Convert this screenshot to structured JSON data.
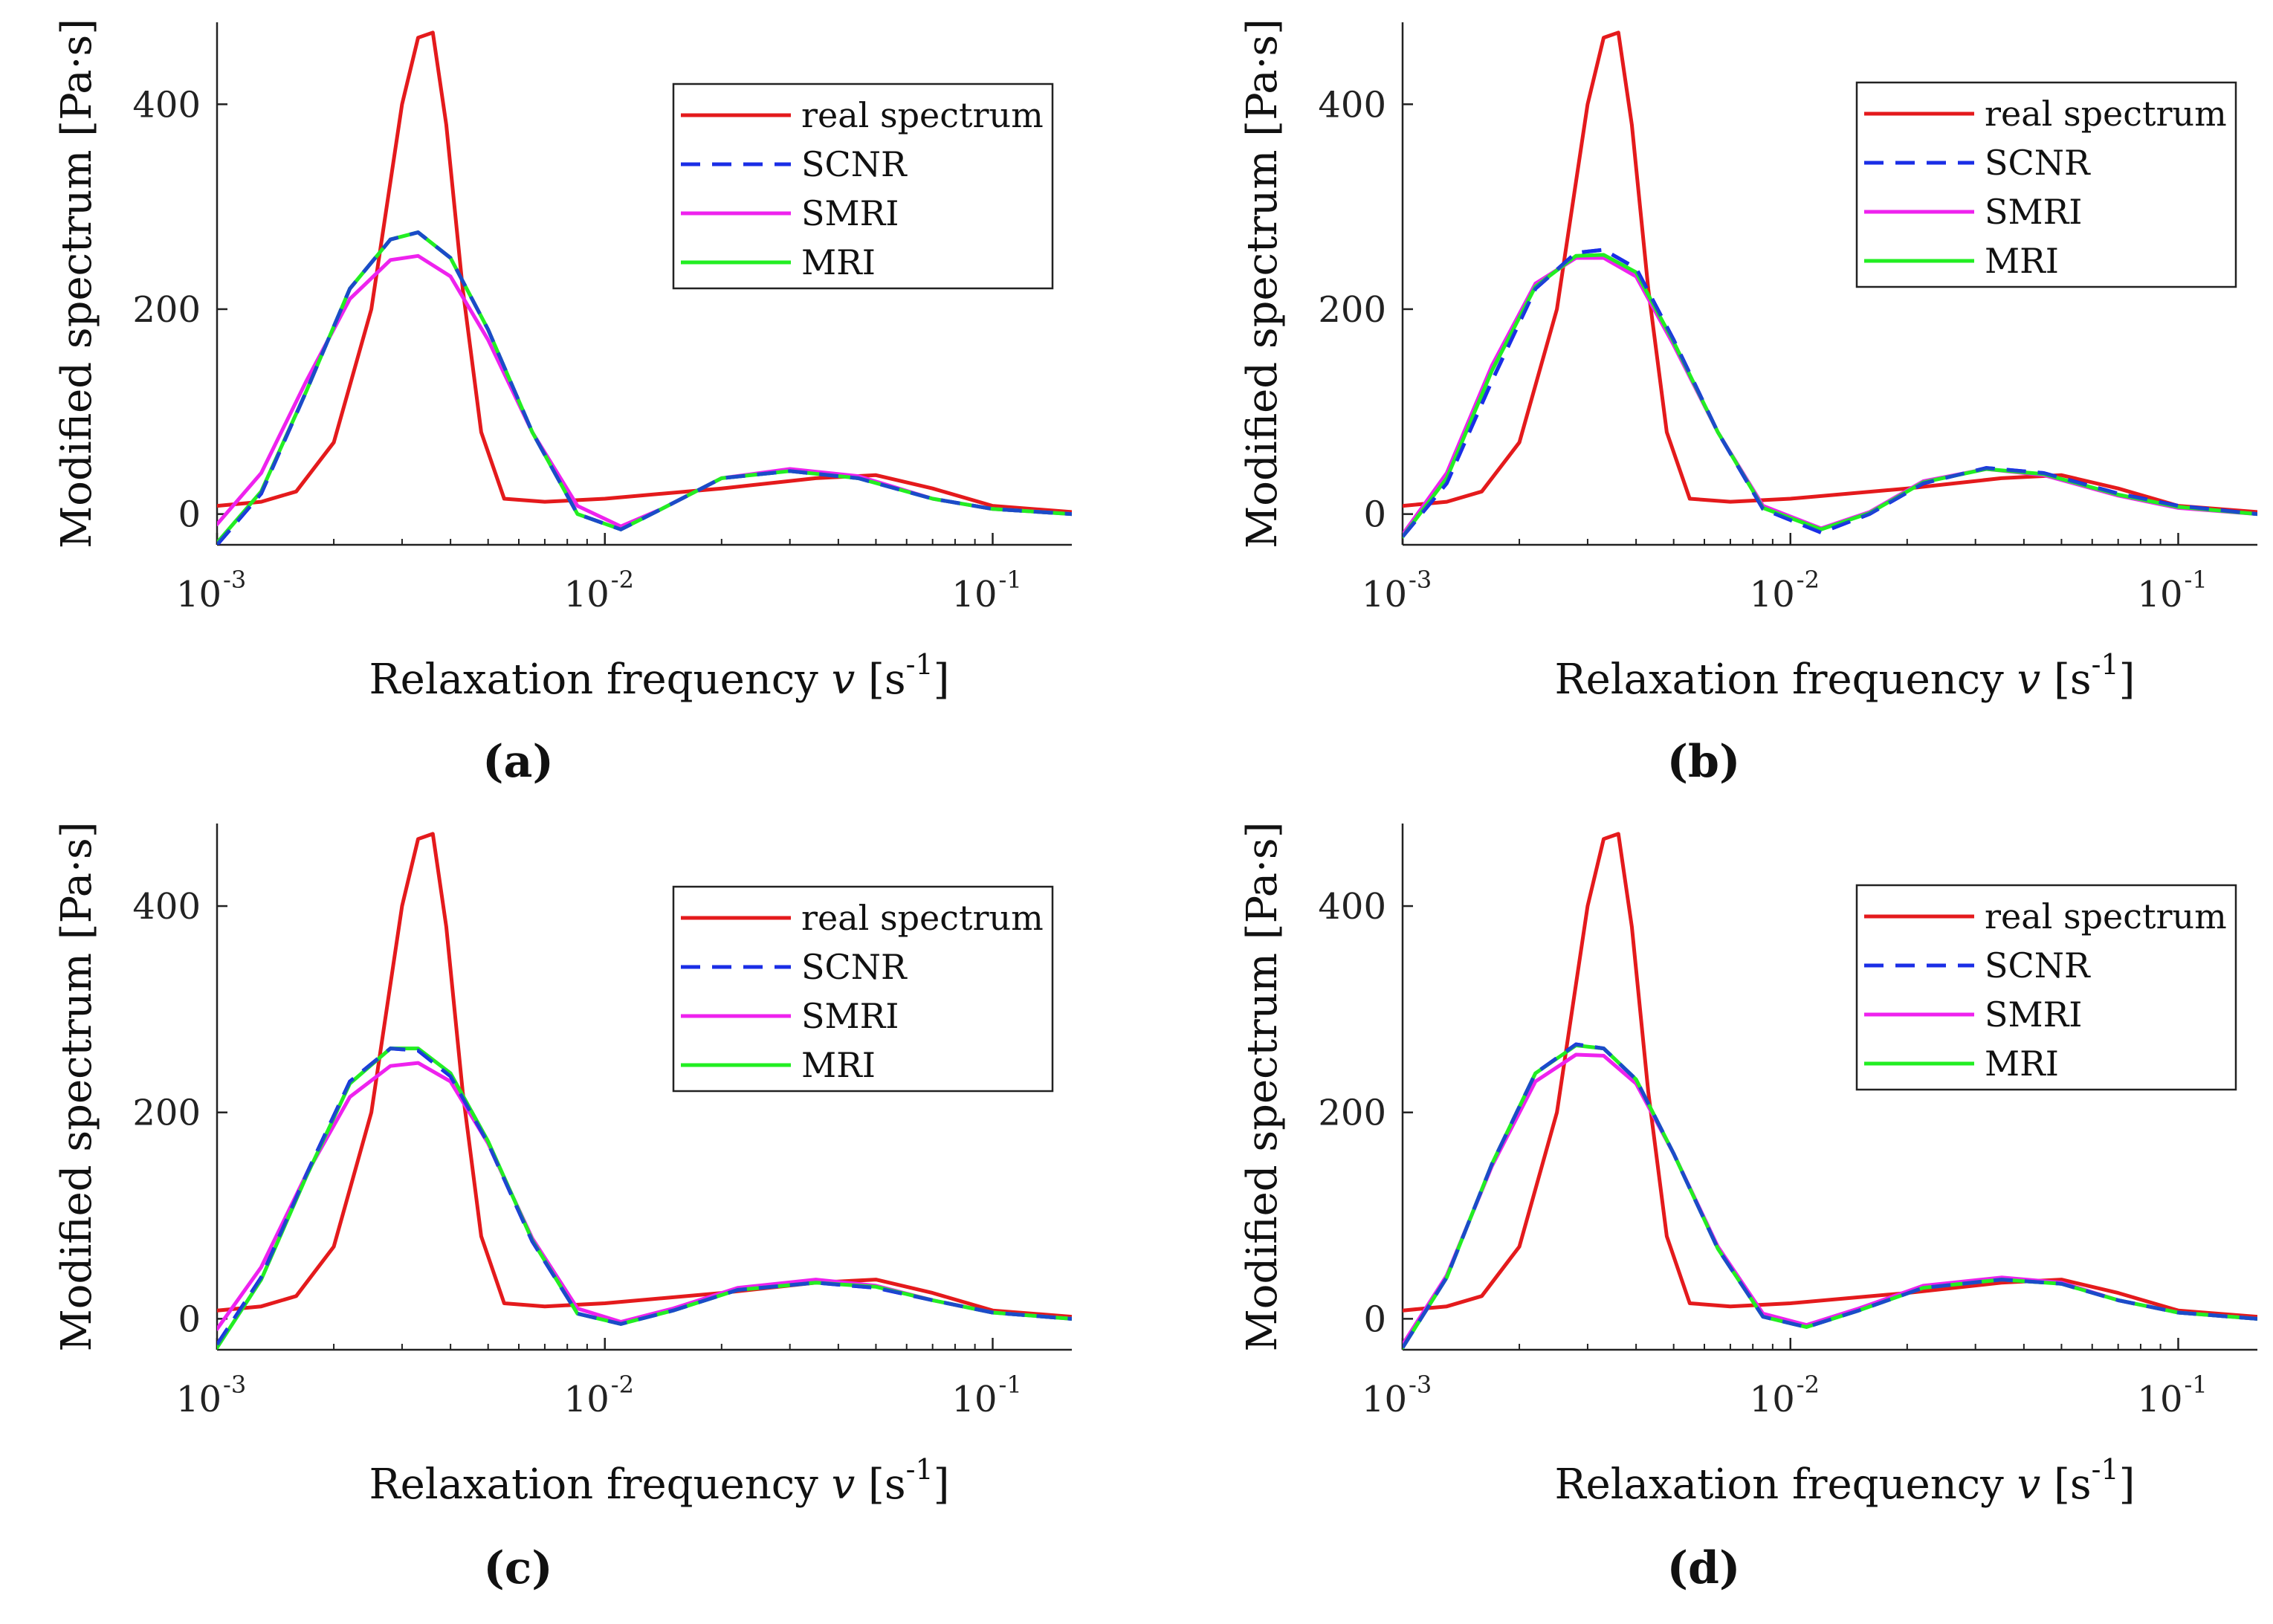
{
  "chart_data": [
    {
      "type": "line",
      "panel": "(a)",
      "xscale": "log",
      "xlabel": "Relaxation frequency",
      "xlabel_var": "v",
      "xlabel_unit_base": "[s",
      "xlabel_unit_exp": "-1",
      "xlabel_unit_close": "]",
      "ylabel": "Modified spectrum  [Pa·s]",
      "xlim": [
        0.001,
        0.16
      ],
      "ylim": [
        -30,
        480
      ],
      "xticks": [
        {
          "v": 0.001,
          "base": "10",
          "exp": "-3"
        },
        {
          "v": 0.01,
          "base": "10",
          "exp": "-2"
        },
        {
          "v": 0.1,
          "base": "10",
          "exp": "-1"
        }
      ],
      "yticks": [
        {
          "v": 0,
          "label": "0"
        },
        {
          "v": 200,
          "label": "200"
        },
        {
          "v": 400,
          "label": "400"
        }
      ],
      "legend_position": "top-right",
      "series": [
        {
          "name": "real spectrum",
          "color": "#e41a1c",
          "dash": "solid",
          "x": [
            0.001,
            0.0013,
            0.0016,
            0.002,
            0.0025,
            0.003,
            0.0033,
            0.0036,
            0.0039,
            0.0043,
            0.0048,
            0.0055,
            0.007,
            0.01,
            0.02,
            0.035,
            0.05,
            0.07,
            0.1,
            0.16
          ],
          "y": [
            8,
            12,
            22,
            70,
            200,
            400,
            465,
            470,
            380,
            220,
            80,
            15,
            12,
            15,
            25,
            35,
            38,
            25,
            8,
            2
          ]
        },
        {
          "name": "SCNR",
          "color": "#1a2ee6",
          "dash": "dashed",
          "x": [
            0.001,
            0.0013,
            0.0017,
            0.0022,
            0.0028,
            0.0033,
            0.004,
            0.005,
            0.0065,
            0.0085,
            0.011,
            0.014,
            0.02,
            0.03,
            0.045,
            0.07,
            0.1,
            0.16
          ],
          "y": [
            -30,
            20,
            120,
            220,
            268,
            275,
            250,
            180,
            80,
            0,
            -15,
            5,
            35,
            42,
            35,
            15,
            5,
            0
          ]
        },
        {
          "name": "SMRI",
          "color": "#ee22ee",
          "dash": "solid",
          "x": [
            0.001,
            0.0013,
            0.0017,
            0.0022,
            0.0028,
            0.0033,
            0.004,
            0.005,
            0.0065,
            0.0085,
            0.011,
            0.014,
            0.02,
            0.03,
            0.045,
            0.07,
            0.1,
            0.16
          ],
          "y": [
            -10,
            40,
            130,
            210,
            248,
            252,
            232,
            170,
            80,
            8,
            -12,
            5,
            35,
            44,
            37,
            15,
            5,
            0
          ]
        },
        {
          "name": "MRI",
          "color": "#22ee22",
          "dash": "solid",
          "x": [
            0.001,
            0.0013,
            0.0017,
            0.0022,
            0.0028,
            0.0033,
            0.004,
            0.005,
            0.0065,
            0.0085,
            0.011,
            0.014,
            0.02,
            0.03,
            0.045,
            0.07,
            0.1,
            0.16
          ],
          "y": [
            -28,
            22,
            120,
            220,
            268,
            275,
            250,
            180,
            80,
            0,
            -15,
            5,
            35,
            42,
            35,
            15,
            5,
            0
          ]
        }
      ]
    },
    {
      "type": "line",
      "panel": "(b)",
      "xscale": "log",
      "xlabel": "Relaxation frequency",
      "xlabel_var": "v",
      "xlabel_unit_base": "[s",
      "xlabel_unit_exp": "-1",
      "xlabel_unit_close": "]",
      "ylabel": "Modified spectrum  [Pa·s]",
      "xlim": [
        0.001,
        0.16
      ],
      "ylim": [
        -30,
        480
      ],
      "xticks": [
        {
          "v": 0.001,
          "base": "10",
          "exp": "-3"
        },
        {
          "v": 0.01,
          "base": "10",
          "exp": "-2"
        },
        {
          "v": 0.1,
          "base": "10",
          "exp": "-1"
        }
      ],
      "yticks": [
        {
          "v": 0,
          "label": "0"
        },
        {
          "v": 200,
          "label": "200"
        },
        {
          "v": 400,
          "label": "400"
        }
      ],
      "legend_position": "top-right",
      "series": [
        {
          "name": "real spectrum",
          "color": "#e41a1c",
          "dash": "solid",
          "x": [
            0.001,
            0.0013,
            0.0016,
            0.002,
            0.0025,
            0.003,
            0.0033,
            0.0036,
            0.0039,
            0.0043,
            0.0048,
            0.0055,
            0.007,
            0.01,
            0.02,
            0.035,
            0.05,
            0.07,
            0.1,
            0.16
          ],
          "y": [
            8,
            12,
            22,
            70,
            200,
            400,
            465,
            470,
            380,
            220,
            80,
            15,
            12,
            15,
            25,
            35,
            38,
            25,
            8,
            2
          ]
        },
        {
          "name": "SCNR",
          "color": "#1a2ee6",
          "dash": "dashed",
          "x": [
            0.001,
            0.0013,
            0.0017,
            0.0022,
            0.0028,
            0.0033,
            0.004,
            0.005,
            0.0065,
            0.0085,
            0.012,
            0.016,
            0.022,
            0.032,
            0.045,
            0.07,
            0.1,
            0.16
          ],
          "y": [
            -22,
            30,
            130,
            220,
            255,
            258,
            240,
            170,
            80,
            5,
            -18,
            0,
            30,
            45,
            40,
            20,
            8,
            0
          ]
        },
        {
          "name": "SMRI",
          "color": "#ee22ee",
          "dash": "solid",
          "x": [
            0.001,
            0.0013,
            0.0017,
            0.0022,
            0.0028,
            0.0033,
            0.004,
            0.005,
            0.0065,
            0.0085,
            0.012,
            0.016,
            0.022,
            0.032,
            0.045,
            0.07,
            0.1,
            0.16
          ],
          "y": [
            -20,
            40,
            145,
            225,
            250,
            250,
            232,
            165,
            80,
            8,
            -14,
            2,
            32,
            44,
            38,
            18,
            6,
            0
          ]
        },
        {
          "name": "MRI",
          "color": "#22ee22",
          "dash": "solid",
          "x": [
            0.001,
            0.0013,
            0.0017,
            0.0022,
            0.0028,
            0.0033,
            0.004,
            0.005,
            0.0065,
            0.0085,
            0.012,
            0.016,
            0.022,
            0.032,
            0.045,
            0.07,
            0.1,
            0.16
          ],
          "y": [
            -22,
            35,
            140,
            222,
            252,
            253,
            236,
            168,
            80,
            6,
            -15,
            1,
            31,
            44,
            39,
            19,
            7,
            0
          ]
        }
      ]
    },
    {
      "type": "line",
      "panel": "(c)",
      "xscale": "log",
      "xlabel": "Relaxation frequency",
      "xlabel_var": "v",
      "xlabel_unit_base": "[s",
      "xlabel_unit_exp": "-1",
      "xlabel_unit_close": "]",
      "ylabel": "Modified spectrum  [Pa·s]",
      "xlim": [
        0.001,
        0.16
      ],
      "ylim": [
        -30,
        480
      ],
      "xticks": [
        {
          "v": 0.001,
          "base": "10",
          "exp": "-3"
        },
        {
          "v": 0.01,
          "base": "10",
          "exp": "-2"
        },
        {
          "v": 0.1,
          "base": "10",
          "exp": "-1"
        }
      ],
      "yticks": [
        {
          "v": 0,
          "label": "0"
        },
        {
          "v": 200,
          "label": "200"
        },
        {
          "v": 400,
          "label": "400"
        }
      ],
      "legend_position": "top-right",
      "series": [
        {
          "name": "real spectrum",
          "color": "#e41a1c",
          "dash": "solid",
          "x": [
            0.001,
            0.0013,
            0.0016,
            0.002,
            0.0025,
            0.003,
            0.0033,
            0.0036,
            0.0039,
            0.0043,
            0.0048,
            0.0055,
            0.007,
            0.01,
            0.02,
            0.035,
            0.05,
            0.07,
            0.1,
            0.16
          ],
          "y": [
            8,
            12,
            22,
            70,
            200,
            400,
            465,
            470,
            380,
            220,
            80,
            15,
            12,
            15,
            25,
            35,
            38,
            25,
            8,
            2
          ]
        },
        {
          "name": "SCNR",
          "color": "#1a2ee6",
          "dash": "dashed",
          "x": [
            0.001,
            0.0013,
            0.0017,
            0.0022,
            0.0028,
            0.0033,
            0.004,
            0.005,
            0.0065,
            0.0085,
            0.011,
            0.015,
            0.022,
            0.035,
            0.05,
            0.07,
            0.1,
            0.16
          ],
          "y": [
            -25,
            40,
            140,
            230,
            262,
            260,
            235,
            170,
            75,
            5,
            -5,
            8,
            28,
            35,
            30,
            18,
            6,
            0
          ]
        },
        {
          "name": "SMRI",
          "color": "#ee22ee",
          "dash": "solid",
          "x": [
            0.001,
            0.0013,
            0.0017,
            0.0022,
            0.0028,
            0.0033,
            0.004,
            0.005,
            0.0065,
            0.0085,
            0.011,
            0.015,
            0.022,
            0.035,
            0.05,
            0.07,
            0.1,
            0.16
          ],
          "y": [
            -10,
            50,
            140,
            215,
            245,
            248,
            230,
            170,
            78,
            10,
            -3,
            10,
            30,
            38,
            32,
            18,
            6,
            0
          ]
        },
        {
          "name": "MRI",
          "color": "#22ee22",
          "dash": "solid",
          "x": [
            0.001,
            0.0013,
            0.0017,
            0.0022,
            0.0028,
            0.0033,
            0.004,
            0.005,
            0.0065,
            0.0085,
            0.011,
            0.015,
            0.022,
            0.035,
            0.05,
            0.07,
            0.1,
            0.16
          ],
          "y": [
            -28,
            38,
            138,
            228,
            262,
            262,
            238,
            172,
            76,
            5,
            -5,
            8,
            28,
            35,
            31,
            18,
            6,
            0
          ]
        }
      ]
    },
    {
      "type": "line",
      "panel": "(d)",
      "xscale": "log",
      "xlabel": "Relaxation frequency",
      "xlabel_var": "v",
      "xlabel_unit_base": "[s",
      "xlabel_unit_exp": "-1",
      "xlabel_unit_close": "]",
      "ylabel": "Modified spectrum  [Pa·s]",
      "xlim": [
        0.001,
        0.16
      ],
      "ylim": [
        -30,
        480
      ],
      "xticks": [
        {
          "v": 0.001,
          "base": "10",
          "exp": "-3"
        },
        {
          "v": 0.01,
          "base": "10",
          "exp": "-2"
        },
        {
          "v": 0.1,
          "base": "10",
          "exp": "-1"
        }
      ],
      "yticks": [
        {
          "v": 0,
          "label": "0"
        },
        {
          "v": 200,
          "label": "200"
        },
        {
          "v": 400,
          "label": "400"
        }
      ],
      "legend_position": "top-right",
      "series": [
        {
          "name": "real spectrum",
          "color": "#e41a1c",
          "dash": "solid",
          "x": [
            0.001,
            0.0013,
            0.0016,
            0.002,
            0.0025,
            0.003,
            0.0033,
            0.0036,
            0.0039,
            0.0043,
            0.0048,
            0.0055,
            0.007,
            0.01,
            0.02,
            0.035,
            0.05,
            0.07,
            0.1,
            0.16
          ],
          "y": [
            8,
            12,
            22,
            70,
            200,
            400,
            465,
            470,
            380,
            220,
            80,
            15,
            12,
            15,
            25,
            35,
            38,
            25,
            8,
            2
          ]
        },
        {
          "name": "SCNR",
          "color": "#1a2ee6",
          "dash": "dashed",
          "x": [
            0.001,
            0.0013,
            0.0017,
            0.0022,
            0.0028,
            0.0033,
            0.004,
            0.005,
            0.0065,
            0.0085,
            0.011,
            0.015,
            0.022,
            0.035,
            0.05,
            0.07,
            0.1,
            0.16
          ],
          "y": [
            -28,
            40,
            150,
            238,
            266,
            262,
            232,
            160,
            68,
            2,
            -8,
            8,
            30,
            38,
            34,
            18,
            6,
            0
          ]
        },
        {
          "name": "SMRI",
          "color": "#ee22ee",
          "dash": "solid",
          "x": [
            0.001,
            0.0013,
            0.0017,
            0.0022,
            0.0028,
            0.0033,
            0.004,
            0.005,
            0.0065,
            0.0085,
            0.011,
            0.015,
            0.022,
            0.035,
            0.05,
            0.07,
            0.1,
            0.16
          ],
          "y": [
            -25,
            42,
            148,
            230,
            256,
            255,
            228,
            160,
            70,
            5,
            -6,
            10,
            32,
            40,
            35,
            18,
            6,
            0
          ]
        },
        {
          "name": "MRI",
          "color": "#22ee22",
          "dash": "solid",
          "x": [
            0.001,
            0.0013,
            0.0017,
            0.0022,
            0.0028,
            0.0033,
            0.004,
            0.005,
            0.0065,
            0.0085,
            0.011,
            0.015,
            0.022,
            0.035,
            0.05,
            0.07,
            0.1,
            0.16
          ],
          "y": [
            -28,
            40,
            150,
            238,
            265,
            262,
            232,
            160,
            68,
            2,
            -8,
            8,
            30,
            38,
            34,
            18,
            6,
            0
          ]
        }
      ]
    }
  ]
}
